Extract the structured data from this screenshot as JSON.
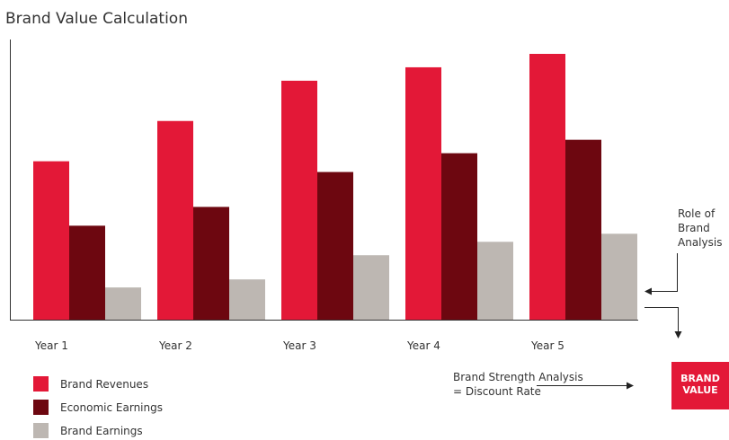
{
  "chart_data": {
    "type": "bar",
    "title": "Brand Value Calculation",
    "xlabel": "",
    "ylabel": "",
    "categories": [
      "Year 1",
      "Year 2",
      "Year 3",
      "Year 4",
      "Year 5"
    ],
    "ylim": [
      0,
      100
    ],
    "grid": false,
    "y_tick_labels": false,
    "legend_position": "bottom-left",
    "series": [
      {
        "name": "Brand Revenues",
        "color": "#e31837",
        "values": [
          59,
          74,
          89,
          94,
          99
        ]
      },
      {
        "name": "Economic Earnings",
        "color": "#6d0710",
        "values": [
          35,
          42,
          55,
          62,
          67
        ]
      },
      {
        "name": "Brand Earnings",
        "color": "#bdb7b2",
        "values": [
          12,
          15,
          24,
          29,
          32
        ]
      }
    ]
  },
  "annotations": {
    "role_label": [
      "Role of",
      "Brand",
      "Analysis"
    ],
    "strength_label": [
      "Brand Strength Analysis",
      "= Discount Rate"
    ],
    "brand_value_label": [
      "BRAND",
      "VALUE"
    ],
    "brand_value_color": "#e31837"
  }
}
